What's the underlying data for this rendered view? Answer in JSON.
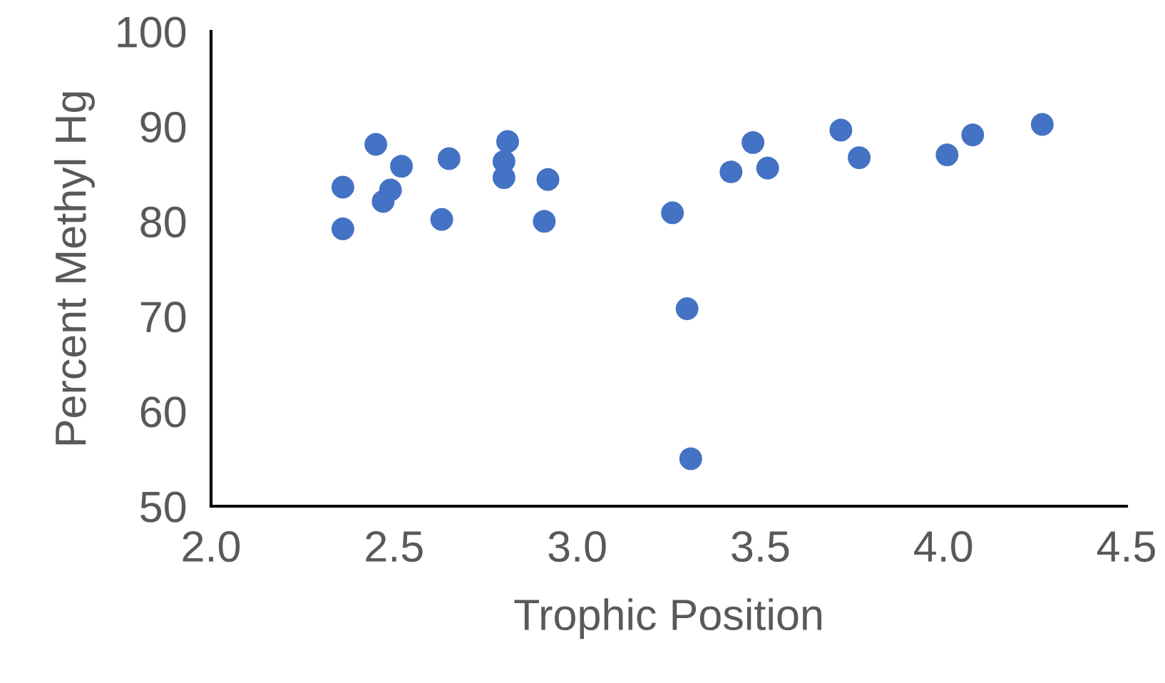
{
  "chart_data": {
    "type": "scatter",
    "xlabel": "Trophic Position",
    "ylabel": "Percent Methyl Hg",
    "x": [
      2.36,
      2.36,
      2.45,
      2.52,
      2.49,
      2.47,
      2.63,
      2.65,
      2.81,
      2.8,
      2.8,
      2.92,
      2.91,
      3.26,
      3.3,
      3.31,
      3.42,
      3.48,
      3.52,
      3.72,
      3.77,
      4.01,
      4.08,
      4.27
    ],
    "series": [
      {
        "color": "#4472c4",
        "values": [
          83.6,
          79.2,
          88.1,
          85.8,
          83.3,
          82.1,
          80.2,
          86.6,
          88.4,
          86.3,
          84.6,
          84.4,
          80.0,
          80.9,
          70.8,
          55.0,
          85.2,
          88.3,
          85.6,
          89.6,
          86.7,
          87.0,
          89.1,
          90.2
        ]
      }
    ],
    "xlim": [
      2.0,
      4.5
    ],
    "ylim": [
      50,
      100
    ],
    "xticks": [
      {
        "value": 2.0,
        "label": "2.0"
      },
      {
        "value": 2.5,
        "label": "2.5"
      },
      {
        "value": 3.0,
        "label": "3.0"
      },
      {
        "value": 3.5,
        "label": "3.5"
      },
      {
        "value": 4.0,
        "label": "4.0"
      },
      {
        "value": 4.5,
        "label": "4.5"
      }
    ],
    "yticks": [
      50,
      60,
      70,
      80,
      90,
      100
    ],
    "grid": false,
    "marker": "circle"
  }
}
